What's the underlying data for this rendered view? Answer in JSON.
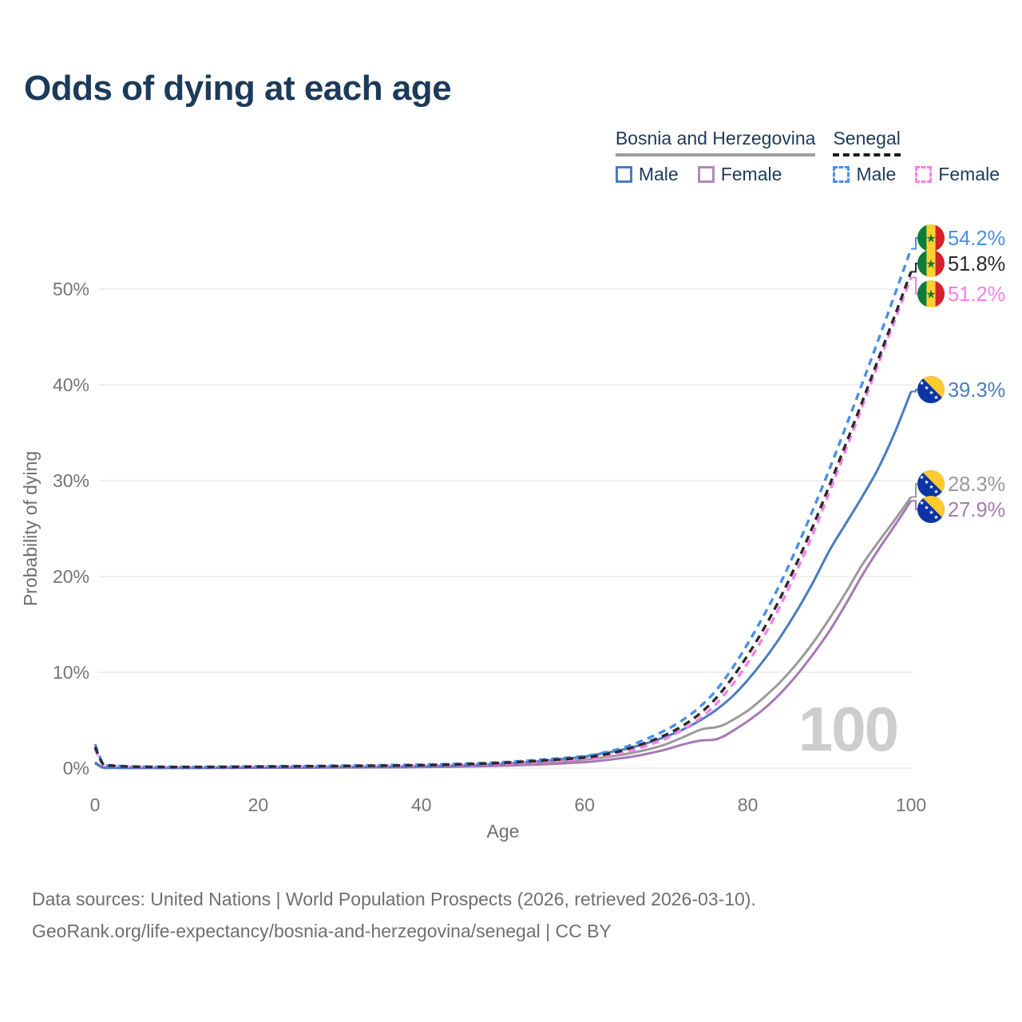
{
  "title": "Odds of dying at each age",
  "legend": {
    "groups": [
      {
        "name": "Bosnia and Herzegovina",
        "underline_style": "solid",
        "underline_color": "#9e9e9e",
        "items": [
          {
            "label": "Male",
            "color": "#4A7CBF",
            "dashed": false
          },
          {
            "label": "Female",
            "color": "#B389BB",
            "dashed": false
          }
        ]
      },
      {
        "name": "Senegal",
        "underline_style": "dashed",
        "underline_color": "#1c1c1c",
        "items": [
          {
            "label": "Male",
            "color": "#4A8FE7",
            "dashed": true
          },
          {
            "label": "Female",
            "color": "#FC7DE9",
            "dashed": true
          }
        ]
      }
    ]
  },
  "watermark": "100",
  "footer": {
    "line1": "Data sources: United Nations | World Population Prospects (2026, retrieved 2026-03-10).",
    "line2": "GeoRank.org/life-expectancy/bosnia-and-herzegovina/senegal | CC BY"
  },
  "chart_data": {
    "type": "line",
    "title": "Odds of dying at each age",
    "xlabel": "Age",
    "ylabel": "Probability of dying",
    "xlim": [
      0,
      100
    ],
    "ylim": [
      0,
      55
    ],
    "x_ticks": [
      0,
      20,
      40,
      60,
      80,
      100
    ],
    "y_ticks": [
      {
        "value": 0,
        "label": "0%"
      },
      {
        "value": 10,
        "label": "10%"
      },
      {
        "value": 20,
        "label": "20%"
      },
      {
        "value": 30,
        "label": "30%"
      },
      {
        "value": 40,
        "label": "40%"
      },
      {
        "value": 50,
        "label": "50%"
      }
    ],
    "grid": "horizontal",
    "legend_position": "top-right",
    "series": [
      {
        "name": "Senegal — Male",
        "color": "#4A8FE7",
        "dash": true,
        "end_label": "54.2%",
        "flag": "senegal",
        "points": [
          [
            0,
            2.5
          ],
          [
            1,
            0.45
          ],
          [
            2,
            0.3
          ],
          [
            3,
            0.22
          ],
          [
            5,
            0.16
          ],
          [
            10,
            0.13
          ],
          [
            15,
            0.14
          ],
          [
            20,
            0.18
          ],
          [
            25,
            0.22
          ],
          [
            30,
            0.25
          ],
          [
            35,
            0.3
          ],
          [
            40,
            0.36
          ],
          [
            45,
            0.45
          ],
          [
            50,
            0.62
          ],
          [
            55,
            0.9
          ],
          [
            60,
            1.25
          ],
          [
            62,
            1.55
          ],
          [
            64,
            1.95
          ],
          [
            66,
            2.5
          ],
          [
            68,
            3.2
          ],
          [
            70,
            4.0
          ],
          [
            72,
            5.0
          ],
          [
            74,
            6.3
          ],
          [
            76,
            8.0
          ],
          [
            78,
            10.3
          ],
          [
            80,
            13.0
          ],
          [
            82,
            16.0
          ],
          [
            84,
            19.3
          ],
          [
            86,
            23.0
          ],
          [
            88,
            27.0
          ],
          [
            90,
            31.2
          ],
          [
            92,
            35.6
          ],
          [
            94,
            40.1
          ],
          [
            96,
            44.7
          ],
          [
            98,
            49.4
          ],
          [
            100,
            54.2
          ]
        ]
      },
      {
        "name": "Senegal — Both sexes",
        "color": "#2B2B2B",
        "dash": true,
        "end_label": "51.8%",
        "flag": "senegal",
        "points": [
          [
            0,
            2.2
          ],
          [
            1,
            0.4
          ],
          [
            2,
            0.27
          ],
          [
            3,
            0.2
          ],
          [
            5,
            0.14
          ],
          [
            10,
            0.11
          ],
          [
            15,
            0.12
          ],
          [
            20,
            0.15
          ],
          [
            25,
            0.18
          ],
          [
            30,
            0.21
          ],
          [
            35,
            0.25
          ],
          [
            40,
            0.3
          ],
          [
            45,
            0.4
          ],
          [
            50,
            0.55
          ],
          [
            55,
            0.8
          ],
          [
            60,
            1.1
          ],
          [
            62,
            1.35
          ],
          [
            64,
            1.7
          ],
          [
            66,
            2.2
          ],
          [
            68,
            2.8
          ],
          [
            70,
            3.5
          ],
          [
            72,
            4.4
          ],
          [
            74,
            5.6
          ],
          [
            76,
            7.2
          ],
          [
            78,
            9.3
          ],
          [
            80,
            11.8
          ],
          [
            82,
            14.6
          ],
          [
            84,
            17.8
          ],
          [
            86,
            21.4
          ],
          [
            88,
            25.3
          ],
          [
            90,
            29.5
          ],
          [
            92,
            33.8
          ],
          [
            94,
            38.2
          ],
          [
            96,
            42.7
          ],
          [
            98,
            47.2
          ],
          [
            100,
            51.8
          ]
        ]
      },
      {
        "name": "Senegal — Female",
        "color": "#FC7DE9",
        "dash": true,
        "end_label": "51.2%",
        "flag": "senegal",
        "points": [
          [
            0,
            2.0
          ],
          [
            1,
            0.36
          ],
          [
            2,
            0.25
          ],
          [
            3,
            0.18
          ],
          [
            5,
            0.13
          ],
          [
            10,
            0.1
          ],
          [
            15,
            0.11
          ],
          [
            20,
            0.13
          ],
          [
            25,
            0.15
          ],
          [
            30,
            0.18
          ],
          [
            35,
            0.21
          ],
          [
            40,
            0.26
          ],
          [
            45,
            0.34
          ],
          [
            50,
            0.47
          ],
          [
            55,
            0.68
          ],
          [
            60,
            0.95
          ],
          [
            62,
            1.2
          ],
          [
            64,
            1.5
          ],
          [
            66,
            1.9
          ],
          [
            68,
            2.45
          ],
          [
            70,
            3.1
          ],
          [
            72,
            4.0
          ],
          [
            74,
            5.1
          ],
          [
            76,
            6.6
          ],
          [
            78,
            8.6
          ],
          [
            80,
            11.0
          ],
          [
            82,
            13.8
          ],
          [
            84,
            17.0
          ],
          [
            86,
            20.6
          ],
          [
            88,
            24.5
          ],
          [
            90,
            28.8
          ],
          [
            92,
            33.2
          ],
          [
            94,
            37.7
          ],
          [
            96,
            42.2
          ],
          [
            98,
            46.7
          ],
          [
            100,
            51.2
          ]
        ]
      },
      {
        "name": "Bosnia and Herzegovina — Male",
        "color": "#4A7CBF",
        "dash": false,
        "end_label": "39.3%",
        "flag": "bosnia",
        "points": [
          [
            0,
            0.6
          ],
          [
            1,
            0.06
          ],
          [
            2,
            0.045
          ],
          [
            3,
            0.035
          ],
          [
            5,
            0.03
          ],
          [
            10,
            0.025
          ],
          [
            15,
            0.045
          ],
          [
            20,
            0.07
          ],
          [
            25,
            0.09
          ],
          [
            30,
            0.1
          ],
          [
            35,
            0.13
          ],
          [
            40,
            0.18
          ],
          [
            45,
            0.28
          ],
          [
            50,
            0.46
          ],
          [
            55,
            0.76
          ],
          [
            60,
            1.2
          ],
          [
            62,
            1.5
          ],
          [
            64,
            1.8
          ],
          [
            66,
            2.2
          ],
          [
            68,
            2.7
          ],
          [
            70,
            3.3
          ],
          [
            72,
            4.0
          ],
          [
            74,
            4.9
          ],
          [
            76,
            6.0
          ],
          [
            78,
            7.4
          ],
          [
            80,
            9.2
          ],
          [
            82,
            11.3
          ],
          [
            84,
            13.7
          ],
          [
            86,
            16.4
          ],
          [
            88,
            19.4
          ],
          [
            90,
            22.7
          ],
          [
            92,
            25.5
          ],
          [
            94,
            28.3
          ],
          [
            96,
            31.3
          ],
          [
            98,
            35.0
          ],
          [
            100,
            39.3
          ]
        ]
      },
      {
        "name": "Bosnia and Herzegovina — Both sexes",
        "color": "#9A9A9A",
        "dash": false,
        "end_label": "28.3%",
        "flag": "bosnia",
        "points": [
          [
            0,
            0.55
          ],
          [
            1,
            0.055
          ],
          [
            2,
            0.04
          ],
          [
            3,
            0.03
          ],
          [
            5,
            0.025
          ],
          [
            10,
            0.02
          ],
          [
            15,
            0.03
          ],
          [
            20,
            0.05
          ],
          [
            25,
            0.06
          ],
          [
            30,
            0.08
          ],
          [
            35,
            0.1
          ],
          [
            40,
            0.14
          ],
          [
            45,
            0.21
          ],
          [
            50,
            0.34
          ],
          [
            55,
            0.56
          ],
          [
            60,
            0.88
          ],
          [
            62,
            1.08
          ],
          [
            64,
            1.32
          ],
          [
            66,
            1.62
          ],
          [
            68,
            2.0
          ],
          [
            70,
            2.5
          ],
          [
            72,
            3.2
          ],
          [
            74,
            3.95
          ],
          [
            75,
            4.15
          ],
          [
            76,
            4.25
          ],
          [
            77,
            4.5
          ],
          [
            78,
            4.95
          ],
          [
            80,
            6.0
          ],
          [
            82,
            7.4
          ],
          [
            84,
            9.0
          ],
          [
            86,
            10.9
          ],
          [
            88,
            13.1
          ],
          [
            90,
            15.6
          ],
          [
            92,
            18.3
          ],
          [
            94,
            21.2
          ],
          [
            96,
            23.6
          ],
          [
            98,
            25.9
          ],
          [
            100,
            28.3
          ]
        ]
      },
      {
        "name": "Bosnia and Herzegovina — Female",
        "color": "#A878B4",
        "dash": false,
        "end_label": "27.9%",
        "flag": "bosnia",
        "points": [
          [
            0,
            0.5
          ],
          [
            1,
            0.05
          ],
          [
            2,
            0.035
          ],
          [
            3,
            0.028
          ],
          [
            5,
            0.02
          ],
          [
            10,
            0.016
          ],
          [
            15,
            0.022
          ],
          [
            20,
            0.032
          ],
          [
            25,
            0.042
          ],
          [
            30,
            0.055
          ],
          [
            35,
            0.075
          ],
          [
            40,
            0.1
          ],
          [
            45,
            0.16
          ],
          [
            50,
            0.25
          ],
          [
            55,
            0.4
          ],
          [
            60,
            0.62
          ],
          [
            62,
            0.78
          ],
          [
            64,
            0.98
          ],
          [
            66,
            1.22
          ],
          [
            68,
            1.55
          ],
          [
            70,
            1.95
          ],
          [
            72,
            2.45
          ],
          [
            74,
            2.85
          ],
          [
            75,
            2.92
          ],
          [
            76,
            2.98
          ],
          [
            77,
            3.3
          ],
          [
            78,
            3.8
          ],
          [
            80,
            4.9
          ],
          [
            82,
            6.2
          ],
          [
            84,
            7.8
          ],
          [
            86,
            9.7
          ],
          [
            88,
            11.9
          ],
          [
            90,
            14.3
          ],
          [
            92,
            17.1
          ],
          [
            94,
            20.1
          ],
          [
            96,
            22.8
          ],
          [
            98,
            25.3
          ],
          [
            100,
            27.9
          ]
        ]
      }
    ],
    "flag_colors": {
      "senegal": {
        "green": "#0E7C3A",
        "yellow": "#FFD02E",
        "red": "#D6202C"
      },
      "bosnia": {
        "blue": "#0B34A4",
        "yellow": "#FFCB2F",
        "stars": "#ffffff"
      }
    }
  },
  "style": {
    "title_color": "#1c3a5a",
    "axis_text_color": "#757575",
    "gridline_color": "#ececec",
    "watermark_color": "#cdcdcd",
    "footer_color": "#6f6f6f"
  }
}
